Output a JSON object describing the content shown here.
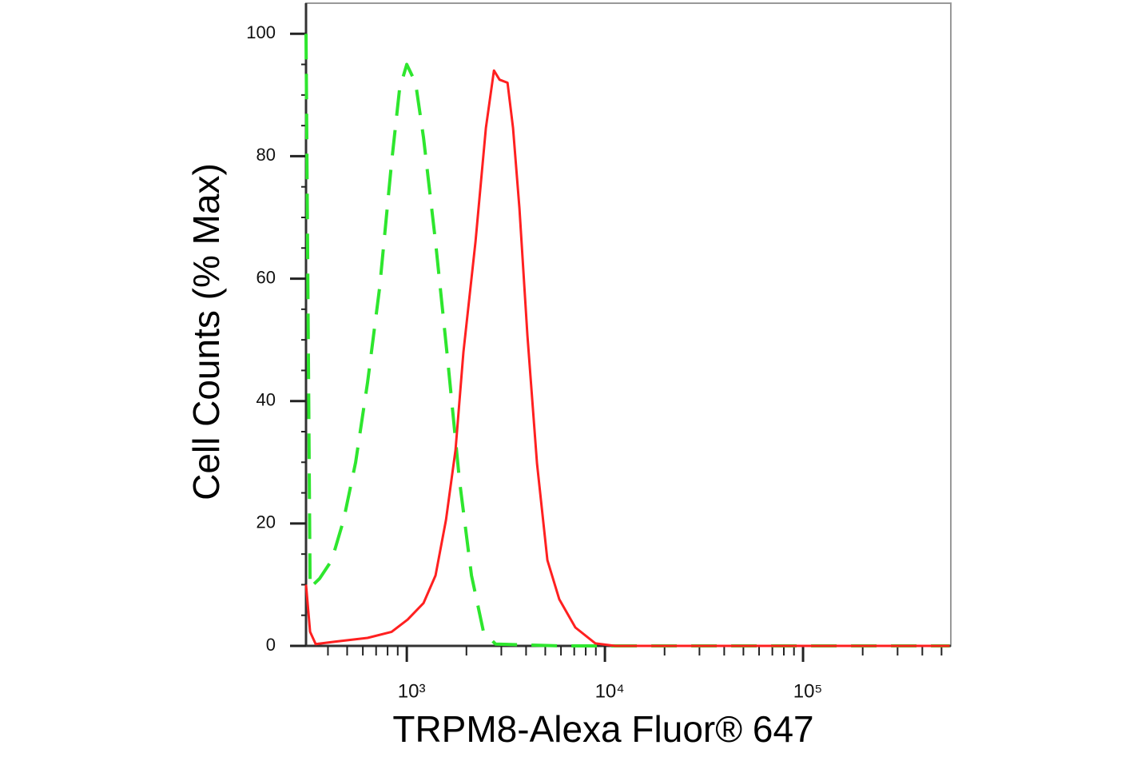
{
  "chart_data": {
    "type": "line",
    "xlabel": "TRPM8-Alexa Fluor® 647",
    "ylabel": "Cell Counts (% Max)",
    "xscale": "log",
    "xlim": [
      310,
      557000
    ],
    "ylim": [
      0,
      105
    ],
    "xticks": [
      {
        "value": 1000,
        "label": "10³"
      },
      {
        "value": 10000,
        "label": "10⁴"
      },
      {
        "value": 100000,
        "label": "10⁵"
      }
    ],
    "xminor_ticks": [
      400,
      500,
      600,
      700,
      800,
      900,
      2000,
      3000,
      4000,
      5000,
      6000,
      7000,
      8000,
      9000,
      20000,
      30000,
      40000,
      50000,
      60000,
      70000,
      80000,
      90000,
      200000,
      300000,
      400000,
      500000
    ],
    "yticks": [
      0,
      20,
      40,
      60,
      80,
      100
    ],
    "yminor_ticks": [
      5,
      10,
      15,
      25,
      30,
      35,
      45,
      50,
      55,
      65,
      70,
      75,
      85,
      90,
      95
    ],
    "series": [
      {
        "color": "#2ee62e",
        "dashed": true,
        "x": [
          310,
          325,
          363,
          418,
          480,
          552,
          634,
          729,
          838,
          920,
          1000,
          1107,
          1215,
          1397,
          1606,
          1846,
          2122,
          2439,
          2804,
          5888,
          550000
        ],
        "values": [
          100,
          9.5,
          11,
          14,
          20.6,
          30,
          43,
          58.5,
          79,
          91,
          95,
          92,
          83,
          66,
          47,
          27,
          11.5,
          2.3,
          0.3,
          0,
          0
        ]
      },
      {
        "color": "#ff2020",
        "dashed": false,
        "x": [
          310,
          325,
          347,
          437,
          634,
          838,
          1010,
          1215,
          1397,
          1577,
          1762,
          1932,
          2222,
          2506,
          2754,
          2939,
          3223,
          3438,
          3704,
          4064,
          4540,
          5124,
          5888,
          7096,
          8954,
          11272,
          550000
        ],
        "values": [
          10,
          2.3,
          0.3,
          0.7,
          1.3,
          2.3,
          4.3,
          7,
          11.5,
          20.6,
          32,
          48,
          66,
          84.6,
          94,
          92.5,
          92,
          84.6,
          71.5,
          50.7,
          29.8,
          14,
          7.6,
          3,
          0.4,
          0,
          0
        ]
      }
    ]
  }
}
